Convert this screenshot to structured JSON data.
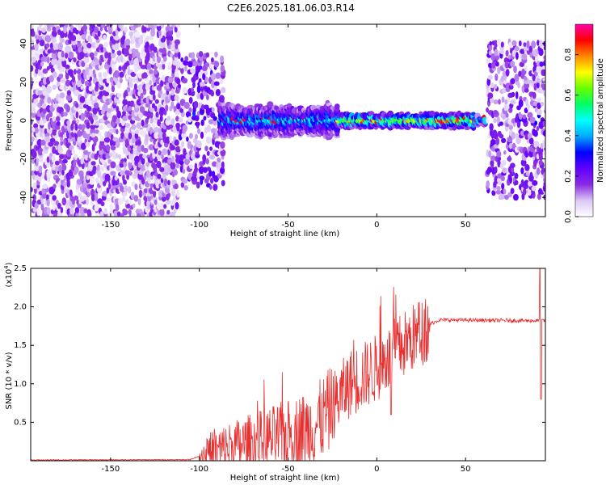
{
  "figure_title": "C2E6.2025.181.06.03.R14",
  "chart_data": [
    {
      "type": "heatmap",
      "xlabel": "Height of straight line (km)",
      "ylabel": "Frequency (Hz)",
      "xlim": [
        -195,
        95
      ],
      "ylim": [
        -50,
        50
      ],
      "xticks": [
        -150,
        -100,
        -50,
        0,
        50
      ],
      "yticks": [
        -40,
        -20,
        0,
        20,
        40
      ],
      "colorbar": {
        "label": "Normalized spectral amplitude",
        "range": [
          0,
          0.95
        ],
        "ticks": [
          0.0,
          0.2,
          0.4,
          0.6,
          0.8
        ],
        "colormap": [
          "#ffffff",
          "#dcc8f5",
          "#8a2be2",
          "#6000ff",
          "#0000ff",
          "#00aaff",
          "#00ffff",
          "#00ff66",
          "#66ff00",
          "#ffff00",
          "#ff8800",
          "#ff0000",
          "#ff00aa"
        ]
      },
      "regions": [
        {
          "x_range": [
            -195,
            -112
          ],
          "freq_halfwidth": 50,
          "amplitude": 0.1,
          "pattern": "dense"
        },
        {
          "x_range": [
            -112,
            -88
          ],
          "freq_halfwidth": 35,
          "amplitude": 0.13,
          "pattern": "noise"
        },
        {
          "x_range": [
            -88,
            -22
          ],
          "freq_halfwidth": 7,
          "amplitude": 0.25,
          "pattern": "band"
        },
        {
          "x_range": [
            -22,
            55
          ],
          "freq_halfwidth": 3,
          "amplitude": 0.42,
          "pattern": "band"
        },
        {
          "x_range": [
            55,
            62
          ],
          "freq_halfwidth": 2,
          "amplitude": 0.32,
          "pattern": "band"
        },
        {
          "x_range": [
            62,
            95
          ],
          "freq_halfwidth": 40,
          "amplitude": 0.12,
          "pattern": "noise"
        }
      ]
    },
    {
      "type": "line",
      "xlabel": "Height of straight line (km)",
      "ylabel": "SNR (10 * v/v)",
      "yscale_label": "(x10",
      "yscale_exponent": "4",
      "xlim": [
        -195,
        95
      ],
      "ylim": [
        0,
        2.5
      ],
      "xticks": [
        -150,
        -100,
        -50,
        0,
        50
      ],
      "yticks": [
        0.5,
        1.0,
        1.5,
        2.0,
        2.5
      ],
      "line_color": "#e83030",
      "profile_points": [
        {
          "x": -195,
          "y": 0.01
        },
        {
          "x": -105,
          "y": 0.015
        },
        {
          "x": -98,
          "y": 0.08
        },
        {
          "x": -85,
          "y": 0.2
        },
        {
          "x": -70,
          "y": 0.28
        },
        {
          "x": -50,
          "y": 0.38
        },
        {
          "x": -35,
          "y": 0.5
        },
        {
          "x": -25,
          "y": 0.75
        },
        {
          "x": -15,
          "y": 1.05
        },
        {
          "x": 0,
          "y": 1.25
        },
        {
          "x": 15,
          "y": 1.55
        },
        {
          "x": 25,
          "y": 1.72
        },
        {
          "x": 35,
          "y": 1.83
        },
        {
          "x": 90,
          "y": 1.82
        },
        {
          "x": 95,
          "y": 1.82
        }
      ],
      "events": [
        {
          "x": 8,
          "y": 0.6
        },
        {
          "x": 92,
          "y": 2.5
        },
        {
          "x": 92.5,
          "y": 0.8
        }
      ]
    }
  ]
}
